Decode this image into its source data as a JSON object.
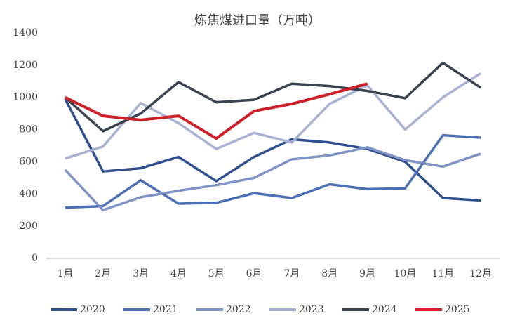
{
  "chart_data": {
    "type": "line",
    "title": "炼焦煤进口量（万吨）",
    "categories": [
      "1月",
      "2月",
      "3月",
      "4月",
      "5月",
      "6月",
      "7月",
      "8月",
      "9月",
      "10月",
      "11月",
      "12月"
    ],
    "series": [
      {
        "name": "2020",
        "color": "#2f4f8f",
        "values": [
          990,
          540,
          560,
          630,
          480,
          630,
          740,
          720,
          680,
          600,
          375,
          360
        ]
      },
      {
        "name": "2021",
        "color": "#4a6fb5",
        "values": [
          315,
          325,
          485,
          340,
          345,
          405,
          375,
          460,
          430,
          435,
          765,
          750
        ]
      },
      {
        "name": "2022",
        "color": "#7f93c6",
        "values": [
          550,
          300,
          380,
          420,
          455,
          500,
          615,
          640,
          690,
          610,
          570,
          650
        ]
      },
      {
        "name": "2023",
        "color": "#aab2d4",
        "values": [
          620,
          695,
          965,
          840,
          680,
          780,
          720,
          960,
          1075,
          800,
          1000,
          1150
        ]
      },
      {
        "name": "2024",
        "color": "#3b4350",
        "values": [
          1000,
          790,
          900,
          1095,
          970,
          985,
          1085,
          1070,
          1040,
          995,
          1215,
          1060
        ]
      },
      {
        "name": "2025",
        "color": "#cc1f27",
        "values": [
          1000,
          885,
          860,
          885,
          745,
          915,
          960,
          1020,
          1085,
          null,
          null,
          null
        ]
      }
    ],
    "ylim": [
      0,
      1400
    ],
    "yticks": [
      0,
      200,
      400,
      600,
      800,
      1000,
      1200,
      1400
    ],
    "grid": false,
    "legend": "bottom"
  }
}
